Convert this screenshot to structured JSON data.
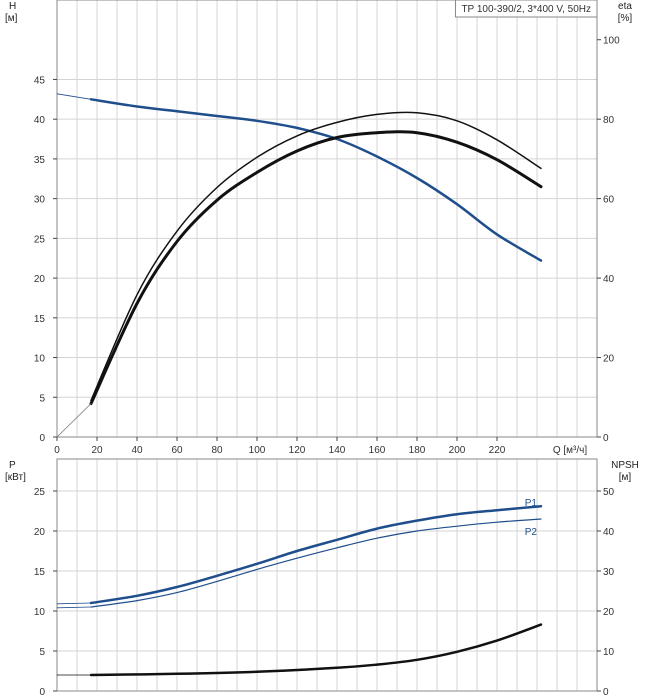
{
  "colors": {
    "blue": "#1f4e8c",
    "black": "#111111",
    "grid": "#d4d4d4",
    "frame": "#888888"
  },
  "chart_data": [
    {
      "type": "line",
      "legend_box": "TP 100-390/2, 3*400 V, 50Hz",
      "left_axis": {
        "label": "H",
        "unit": "[м]",
        "ticks": [
          0,
          5,
          10,
          15,
          20,
          25,
          30,
          35,
          40,
          45
        ],
        "ylim": [
          0,
          55
        ]
      },
      "right_axis": {
        "label": "eta",
        "unit": "[%]",
        "ticks": [
          0,
          20,
          40,
          60,
          80,
          100
        ],
        "ylim": [
          0,
          110
        ]
      },
      "x_axis": {
        "label": "Q [м³/ч]",
        "ticks": [
          0,
          20,
          40,
          60,
          80,
          100,
          120,
          140,
          160,
          180,
          200,
          220
        ],
        "xlim": [
          0,
          270
        ]
      },
      "grid": true,
      "series": [
        {
          "axis": "left",
          "color": "#1f4e8c",
          "width": 2.5,
          "x": [
            17,
            40,
            60,
            80,
            100,
            120,
            140,
            160,
            180,
            200,
            220,
            242
          ],
          "y": [
            42.5,
            41.6,
            41.0,
            40.4,
            39.8,
            38.9,
            37.5,
            35.3,
            32.6,
            29.3,
            25.5,
            22.2
          ]
        },
        {
          "axis": "left",
          "color": "#1f4e8c",
          "width": 0.8,
          "x": [
            0,
            17
          ],
          "y": [
            43.2,
            42.5
          ]
        },
        {
          "axis": "right",
          "color": "#111111",
          "width": 1.5,
          "x": [
            17,
            40,
            60,
            80,
            100,
            120,
            140,
            160,
            180,
            200,
            220,
            242
          ],
          "y": [
            9.2,
            35.8,
            51.8,
            62.8,
            70.4,
            75.8,
            79.2,
            81.2,
            81.6,
            79.6,
            74.8,
            67.6
          ]
        },
        {
          "axis": "right",
          "color": "#111111",
          "width": 3,
          "x": [
            17,
            40,
            60,
            80,
            100,
            120,
            140,
            160,
            180,
            200,
            220,
            242
          ],
          "y": [
            8.4,
            33.6,
            49.2,
            59.6,
            66.6,
            72.0,
            75.4,
            76.6,
            76.6,
            74.2,
            69.8,
            63.0
          ]
        },
        {
          "axis": "right",
          "color": "#777777",
          "width": 0.8,
          "x": [
            0,
            17
          ],
          "y": [
            0,
            8.4
          ]
        }
      ]
    },
    {
      "type": "line",
      "left_axis": {
        "label": "P",
        "unit": "[кВт]",
        "ticks": [
          0,
          5,
          10,
          15,
          20,
          25
        ],
        "ylim": [
          0,
          29
        ]
      },
      "right_axis": {
        "label": "NPSH",
        "unit": "[м]",
        "ticks": [
          0,
          10,
          20,
          30,
          40,
          50
        ],
        "ylim": [
          0,
          58
        ]
      },
      "x_axis": {
        "label": "",
        "ticks": [],
        "xlim": [
          0,
          270
        ]
      },
      "grid": true,
      "series": [
        {
          "name": "P1",
          "axis": "left",
          "color": "#1f4e8c",
          "width": 2.5,
          "x": [
            17,
            40,
            60,
            80,
            100,
            120,
            140,
            160,
            180,
            200,
            220,
            242
          ],
          "y": [
            11.0,
            11.9,
            13.0,
            14.4,
            15.9,
            17.5,
            18.9,
            20.3,
            21.3,
            22.1,
            22.6,
            23.1
          ]
        },
        {
          "name": "P2",
          "axis": "left",
          "color": "#1f4e8c",
          "width": 1.2,
          "x": [
            17,
            40,
            60,
            80,
            100,
            120,
            140,
            160,
            180,
            200,
            220,
            242
          ],
          "y": [
            10.5,
            11.3,
            12.3,
            13.7,
            15.2,
            16.6,
            17.9,
            19.1,
            20.0,
            20.6,
            21.1,
            21.5
          ]
        },
        {
          "axis": "left",
          "color": "#1f4e8c",
          "width": 0.8,
          "x": [
            0,
            17
          ],
          "y": [
            10.9,
            11.0
          ]
        },
        {
          "axis": "left",
          "color": "#1f4e8c",
          "width": 0.8,
          "x": [
            0,
            17
          ],
          "y": [
            10.4,
            10.5
          ]
        },
        {
          "axis": "right",
          "color": "#111111",
          "width": 2.5,
          "x": [
            17,
            60,
            100,
            140,
            160,
            180,
            200,
            220,
            242
          ],
          "y": [
            4.0,
            4.3,
            4.8,
            5.8,
            6.6,
            7.8,
            9.8,
            12.6,
            16.6
          ]
        },
        {
          "axis": "right",
          "color": "#111111",
          "width": 0.8,
          "x": [
            0,
            17
          ],
          "y": [
            4.0,
            4.0
          ]
        }
      ],
      "labels": [
        {
          "text": "P1",
          "x": 242,
          "y": 23.6
        },
        {
          "text": "P2",
          "x": 242,
          "y": 20.0
        }
      ]
    }
  ]
}
